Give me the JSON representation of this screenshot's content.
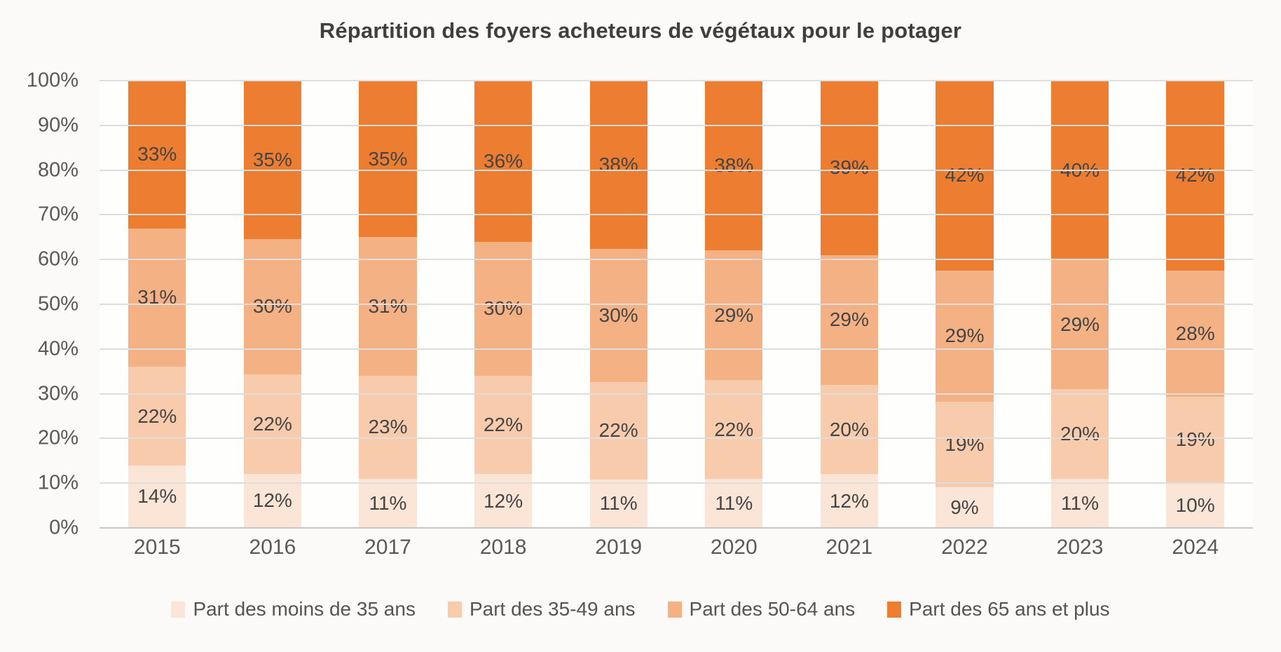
{
  "chart_data": {
    "type": "bar",
    "variant": "stacked-100",
    "title": "Répartition des foyers acheteurs de végétaux pour le potager",
    "categories": [
      "2015",
      "2016",
      "2017",
      "2018",
      "2019",
      "2020",
      "2021",
      "2022",
      "2023",
      "2024"
    ],
    "series": [
      {
        "name": "Part des moins de 35 ans",
        "color": "#FBE5D6",
        "values": [
          14,
          12,
          11,
          12,
          11,
          11,
          12,
          9,
          11,
          10
        ]
      },
      {
        "name": "Part des 35-49 ans",
        "color": "#F8CBAD",
        "values": [
          22,
          22,
          23,
          22,
          22,
          22,
          20,
          19,
          20,
          19
        ]
      },
      {
        "name": "Part des 50-64 ans",
        "color": "#F4B183",
        "values": [
          31,
          30,
          31,
          30,
          30,
          29,
          29,
          29,
          29,
          28
        ]
      },
      {
        "name": "Part des 65 ans et plus",
        "color": "#ED7D31",
        "values": [
          33,
          35,
          35,
          36,
          38,
          38,
          39,
          42,
          40,
          42
        ]
      }
    ],
    "value_suffix": "%",
    "xlabel": "",
    "ylabel": "",
    "ylim": [
      0,
      100
    ],
    "ytick_labels": [
      "0%",
      "10%",
      "20%",
      "30%",
      "40%",
      "50%",
      "60%",
      "70%",
      "80%",
      "90%",
      "100%"
    ],
    "grid": true,
    "legend_position": "bottom"
  },
  "colors": {
    "page_background": "#FBFAF9",
    "plot_background": "#FEFEFD",
    "gridline": "#E0DEDC",
    "axis_line": "#C9C7C5",
    "title_text": "#3F3F3F",
    "tick_text": "#595959",
    "data_label_text": "#454545",
    "legend_text": "#545454"
  }
}
